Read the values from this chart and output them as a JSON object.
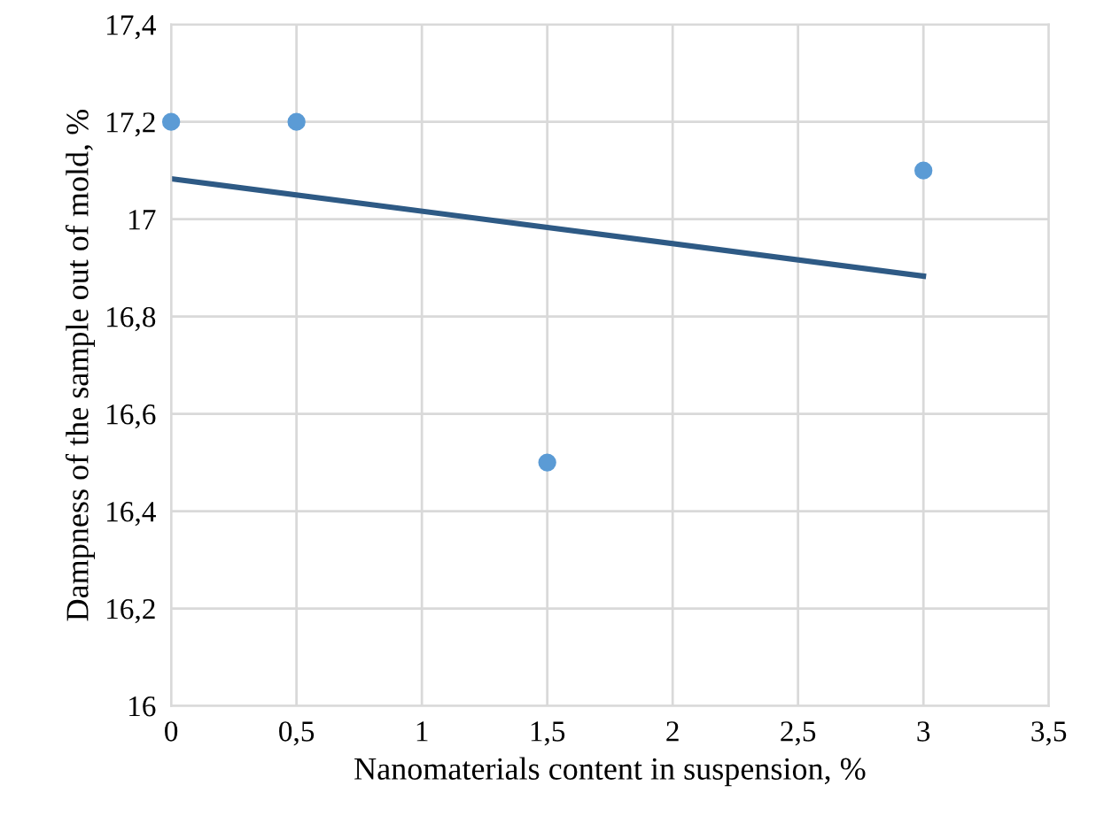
{
  "chart_data": {
    "type": "scatter",
    "xlabel": "Nanomaterials content in suspension, %",
    "ylabel": "Dampness of the sample out of mold, %",
    "series": [
      {
        "color": "#5b9bd5",
        "x": [
          0,
          0.5,
          1.5,
          3
        ],
        "values": [
          17.2,
          17.2,
          16.5,
          17.1
        ],
        "marker": "circle"
      },
      {
        "type": "line",
        "color": "#2e5a85",
        "x": [
          0,
          3
        ],
        "values": [
          17.083,
          16.883
        ],
        "line_style": "solid"
      }
    ],
    "xlim": [
      0,
      3.5
    ],
    "ylim": [
      16,
      17.4
    ],
    "xticks": [
      0,
      {
        "value": 0.5,
        "label": "0,5"
      },
      1,
      {
        "value": 1.5,
        "label": "1,5"
      },
      2,
      {
        "value": 2.5,
        "label": "2,5"
      },
      3,
      {
        "value": 3.5,
        "label": "3,5"
      }
    ],
    "yticks": [
      16,
      {
        "value": 16.2,
        "label": "16,2"
      },
      {
        "value": 16.4,
        "label": "16,4"
      },
      {
        "value": 16.6,
        "label": "16,6"
      },
      {
        "value": 16.8,
        "label": "16,8"
      },
      17,
      {
        "value": 17.2,
        "label": "17,2"
      },
      {
        "value": 17.4,
        "label": "17,4"
      }
    ],
    "grid": true
  }
}
